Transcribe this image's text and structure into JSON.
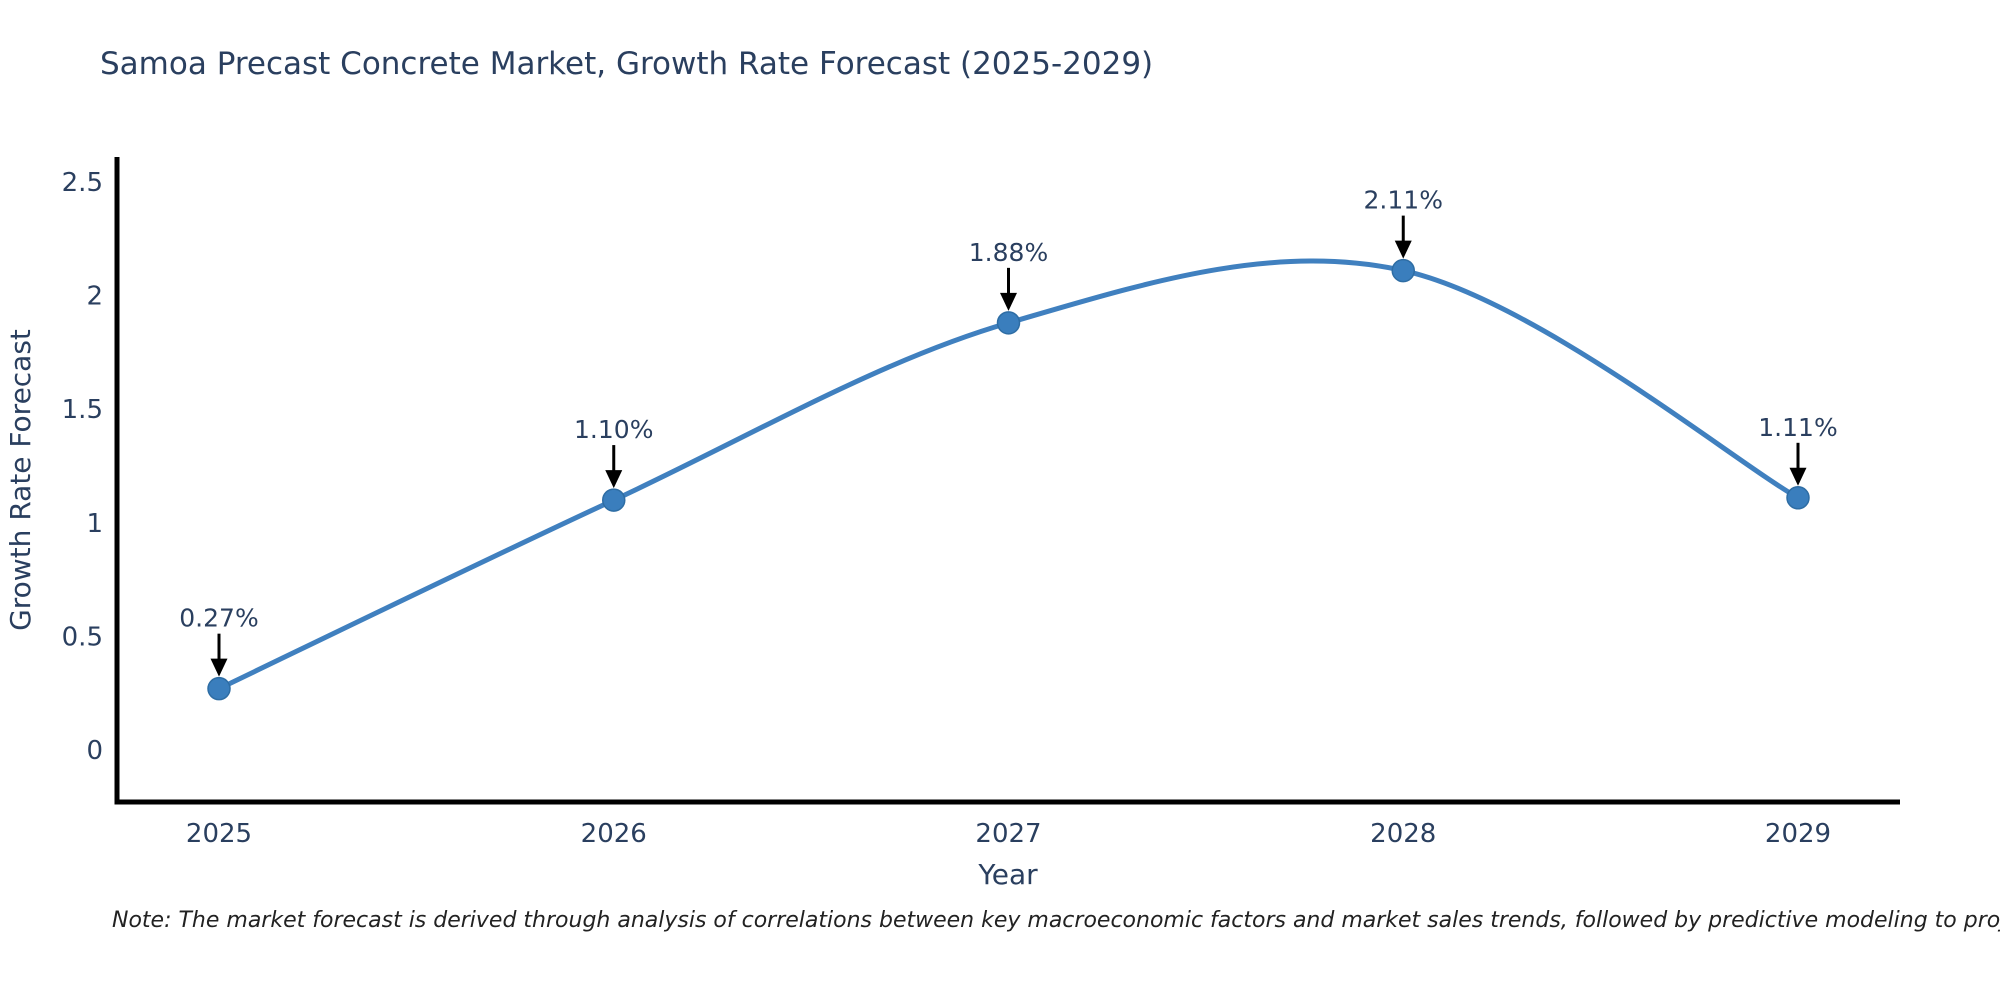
{
  "page": {
    "note": "Note: The market forecast is derived through analysis of correlations between key macroeconomic factors and market sales trends, followed by predictive modeling to project future sales"
  },
  "chart_data": {
    "type": "line",
    "title": "Samoa Precast Concrete Market, Growth Rate Forecast (2025-2029)",
    "xlabel": "Year",
    "ylabel": "Growth Rate Forecast",
    "x": [
      2025,
      2026,
      2027,
      2028,
      2029
    ],
    "series": [
      {
        "name": "Growth Rate Forecast",
        "values": [
          0.27,
          1.1,
          1.88,
          2.11,
          1.11
        ],
        "point_labels": [
          "0.27%",
          "1.10%",
          "1.88%",
          "2.11%",
          "1.11%"
        ]
      }
    ],
    "line_shape": "spline",
    "markers": true,
    "annotation_arrows": true,
    "xticks": [
      "2025",
      "2026",
      "2027",
      "2028",
      "2029"
    ],
    "yticks": [
      "0",
      "0.5",
      "1",
      "1.5",
      "2",
      "2.5"
    ],
    "ylim": [
      -0.23,
      2.6
    ],
    "grid": false,
    "legend": "none",
    "colors": {
      "line": "#4080bf",
      "marker_fill": "#3a7ebd",
      "marker_edge": "#2e6da4",
      "arrow": "#000000",
      "axis_line": "#000000",
      "text": "#2a3f5f",
      "note_text": "#222222",
      "background": "#ffffff"
    }
  }
}
